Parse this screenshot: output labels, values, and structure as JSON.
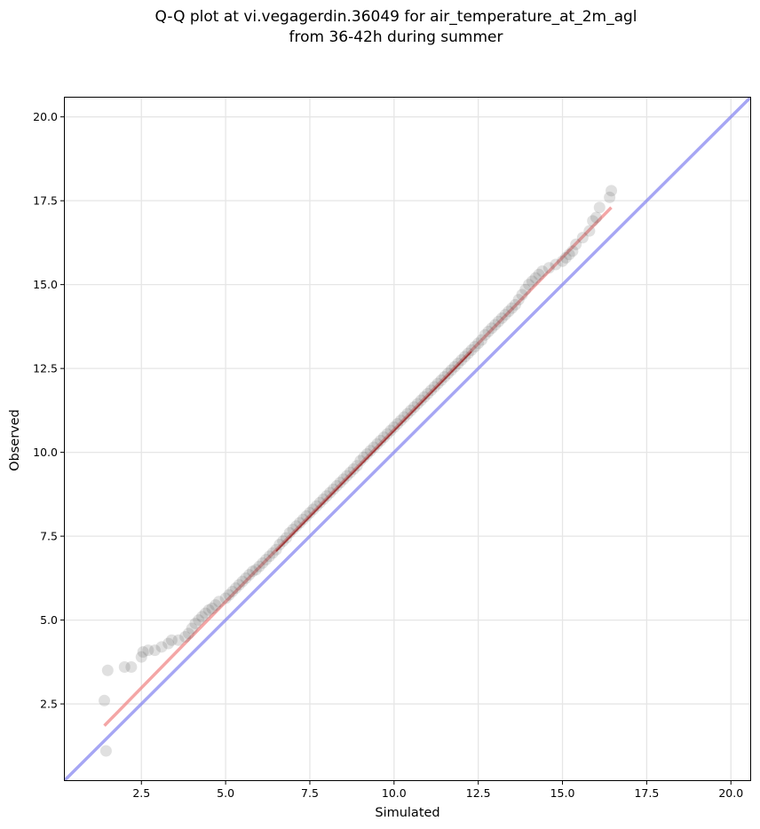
{
  "chart_data": {
    "type": "scatter",
    "title_lines": [
      "Q-Q plot at vi.vegagerdin.36049 for air_temperature_at_2m_agl",
      "from 36-42h during summer"
    ],
    "xlabel": "Simulated",
    "ylabel": "Observed",
    "xlim": [
      0.2,
      20.6
    ],
    "ylim": [
      0.2,
      20.6
    ],
    "xticks": [
      2.5,
      5.0,
      7.5,
      10.0,
      12.5,
      15.0,
      17.5,
      20.0
    ],
    "yticks": [
      2.5,
      5.0,
      7.5,
      10.0,
      12.5,
      15.0,
      17.5,
      20.0
    ],
    "xtick_labels": [
      "2.5",
      "5.0",
      "7.5",
      "10.0",
      "12.5",
      "15.0",
      "17.5",
      "20.0"
    ],
    "ytick_labels": [
      "2.5",
      "5.0",
      "7.5",
      "10.0",
      "12.5",
      "15.0",
      "17.5",
      "20.0"
    ],
    "grid": true,
    "colors": {
      "points": "#555555",
      "fit_line": "#f08080",
      "identity_line": "#8080f0",
      "mid_core": "#8b0000"
    },
    "identity_line": {
      "x": [
        0.2,
        20.6
      ],
      "y": [
        0.2,
        20.6
      ]
    },
    "fit_line": {
      "x": [
        1.4,
        16.45
      ],
      "y": [
        1.85,
        17.3
      ]
    },
    "points_x": [
      1.4,
      1.45,
      1.5,
      2.0,
      2.2,
      2.5,
      2.55,
      2.7,
      2.9,
      3.1,
      3.3,
      3.4,
      3.6,
      3.8,
      3.9,
      4.0,
      4.1,
      4.2,
      4.3,
      4.4,
      4.5,
      4.6,
      4.7,
      4.8,
      5.0,
      5.1,
      5.2,
      5.3,
      5.4,
      5.5,
      5.6,
      5.7,
      5.8,
      5.9,
      6.0,
      6.1,
      6.2,
      6.3,
      6.4,
      6.5,
      6.6,
      6.7,
      6.8,
      6.9,
      7.0,
      7.1,
      7.2,
      7.3,
      7.4,
      7.5,
      7.6,
      7.7,
      7.8,
      7.9,
      8.0,
      8.1,
      8.2,
      8.3,
      8.4,
      8.5,
      8.6,
      8.7,
      8.8,
      8.9,
      9.0,
      9.1,
      9.2,
      9.3,
      9.4,
      9.5,
      9.6,
      9.7,
      9.8,
      9.9,
      10.0,
      10.1,
      10.2,
      10.3,
      10.4,
      10.5,
      10.6,
      10.7,
      10.8,
      10.9,
      11.0,
      11.1,
      11.2,
      11.3,
      11.4,
      11.5,
      11.6,
      11.7,
      11.8,
      11.9,
      12.0,
      12.1,
      12.2,
      12.3,
      12.4,
      12.5,
      12.6,
      12.7,
      12.8,
      12.9,
      13.0,
      13.1,
      13.2,
      13.3,
      13.4,
      13.5,
      13.6,
      13.7,
      13.8,
      13.9,
      14.0,
      14.1,
      14.2,
      14.3,
      14.4,
      14.6,
      14.8,
      15.0,
      15.1,
      15.2,
      15.3,
      15.4,
      15.6,
      15.8,
      15.9,
      16.0,
      16.1,
      16.4,
      16.45
    ],
    "points_y": [
      2.6,
      1.1,
      3.5,
      3.6,
      3.6,
      3.9,
      4.05,
      4.1,
      4.1,
      4.2,
      4.3,
      4.4,
      4.4,
      4.5,
      4.6,
      4.75,
      4.9,
      5.0,
      5.1,
      5.2,
      5.3,
      5.35,
      5.45,
      5.55,
      5.65,
      5.75,
      5.85,
      5.95,
      6.05,
      6.15,
      6.25,
      6.35,
      6.45,
      6.5,
      6.6,
      6.7,
      6.8,
      6.9,
      7.0,
      7.1,
      7.25,
      7.35,
      7.45,
      7.6,
      7.7,
      7.8,
      7.9,
      8.0,
      8.1,
      8.2,
      8.3,
      8.4,
      8.5,
      8.6,
      8.7,
      8.8,
      8.9,
      9.0,
      9.1,
      9.2,
      9.3,
      9.4,
      9.5,
      9.6,
      9.75,
      9.85,
      9.95,
      10.05,
      10.15,
      10.25,
      10.35,
      10.45,
      10.55,
      10.65,
      10.75,
      10.85,
      10.95,
      11.05,
      11.15,
      11.25,
      11.35,
      11.45,
      11.55,
      11.65,
      11.75,
      11.85,
      11.95,
      12.05,
      12.15,
      12.25,
      12.35,
      12.45,
      12.55,
      12.65,
      12.75,
      12.85,
      12.95,
      13.05,
      13.15,
      13.25,
      13.35,
      13.5,
      13.6,
      13.7,
      13.8,
      13.9,
      14.0,
      14.1,
      14.2,
      14.3,
      14.4,
      14.55,
      14.7,
      14.85,
      15.0,
      15.1,
      15.2,
      15.3,
      15.4,
      15.5,
      15.6,
      15.7,
      15.8,
      15.9,
      16.0,
      16.2,
      16.4,
      16.6,
      16.9,
      17.0,
      17.3,
      17.6,
      17.8
    ]
  }
}
